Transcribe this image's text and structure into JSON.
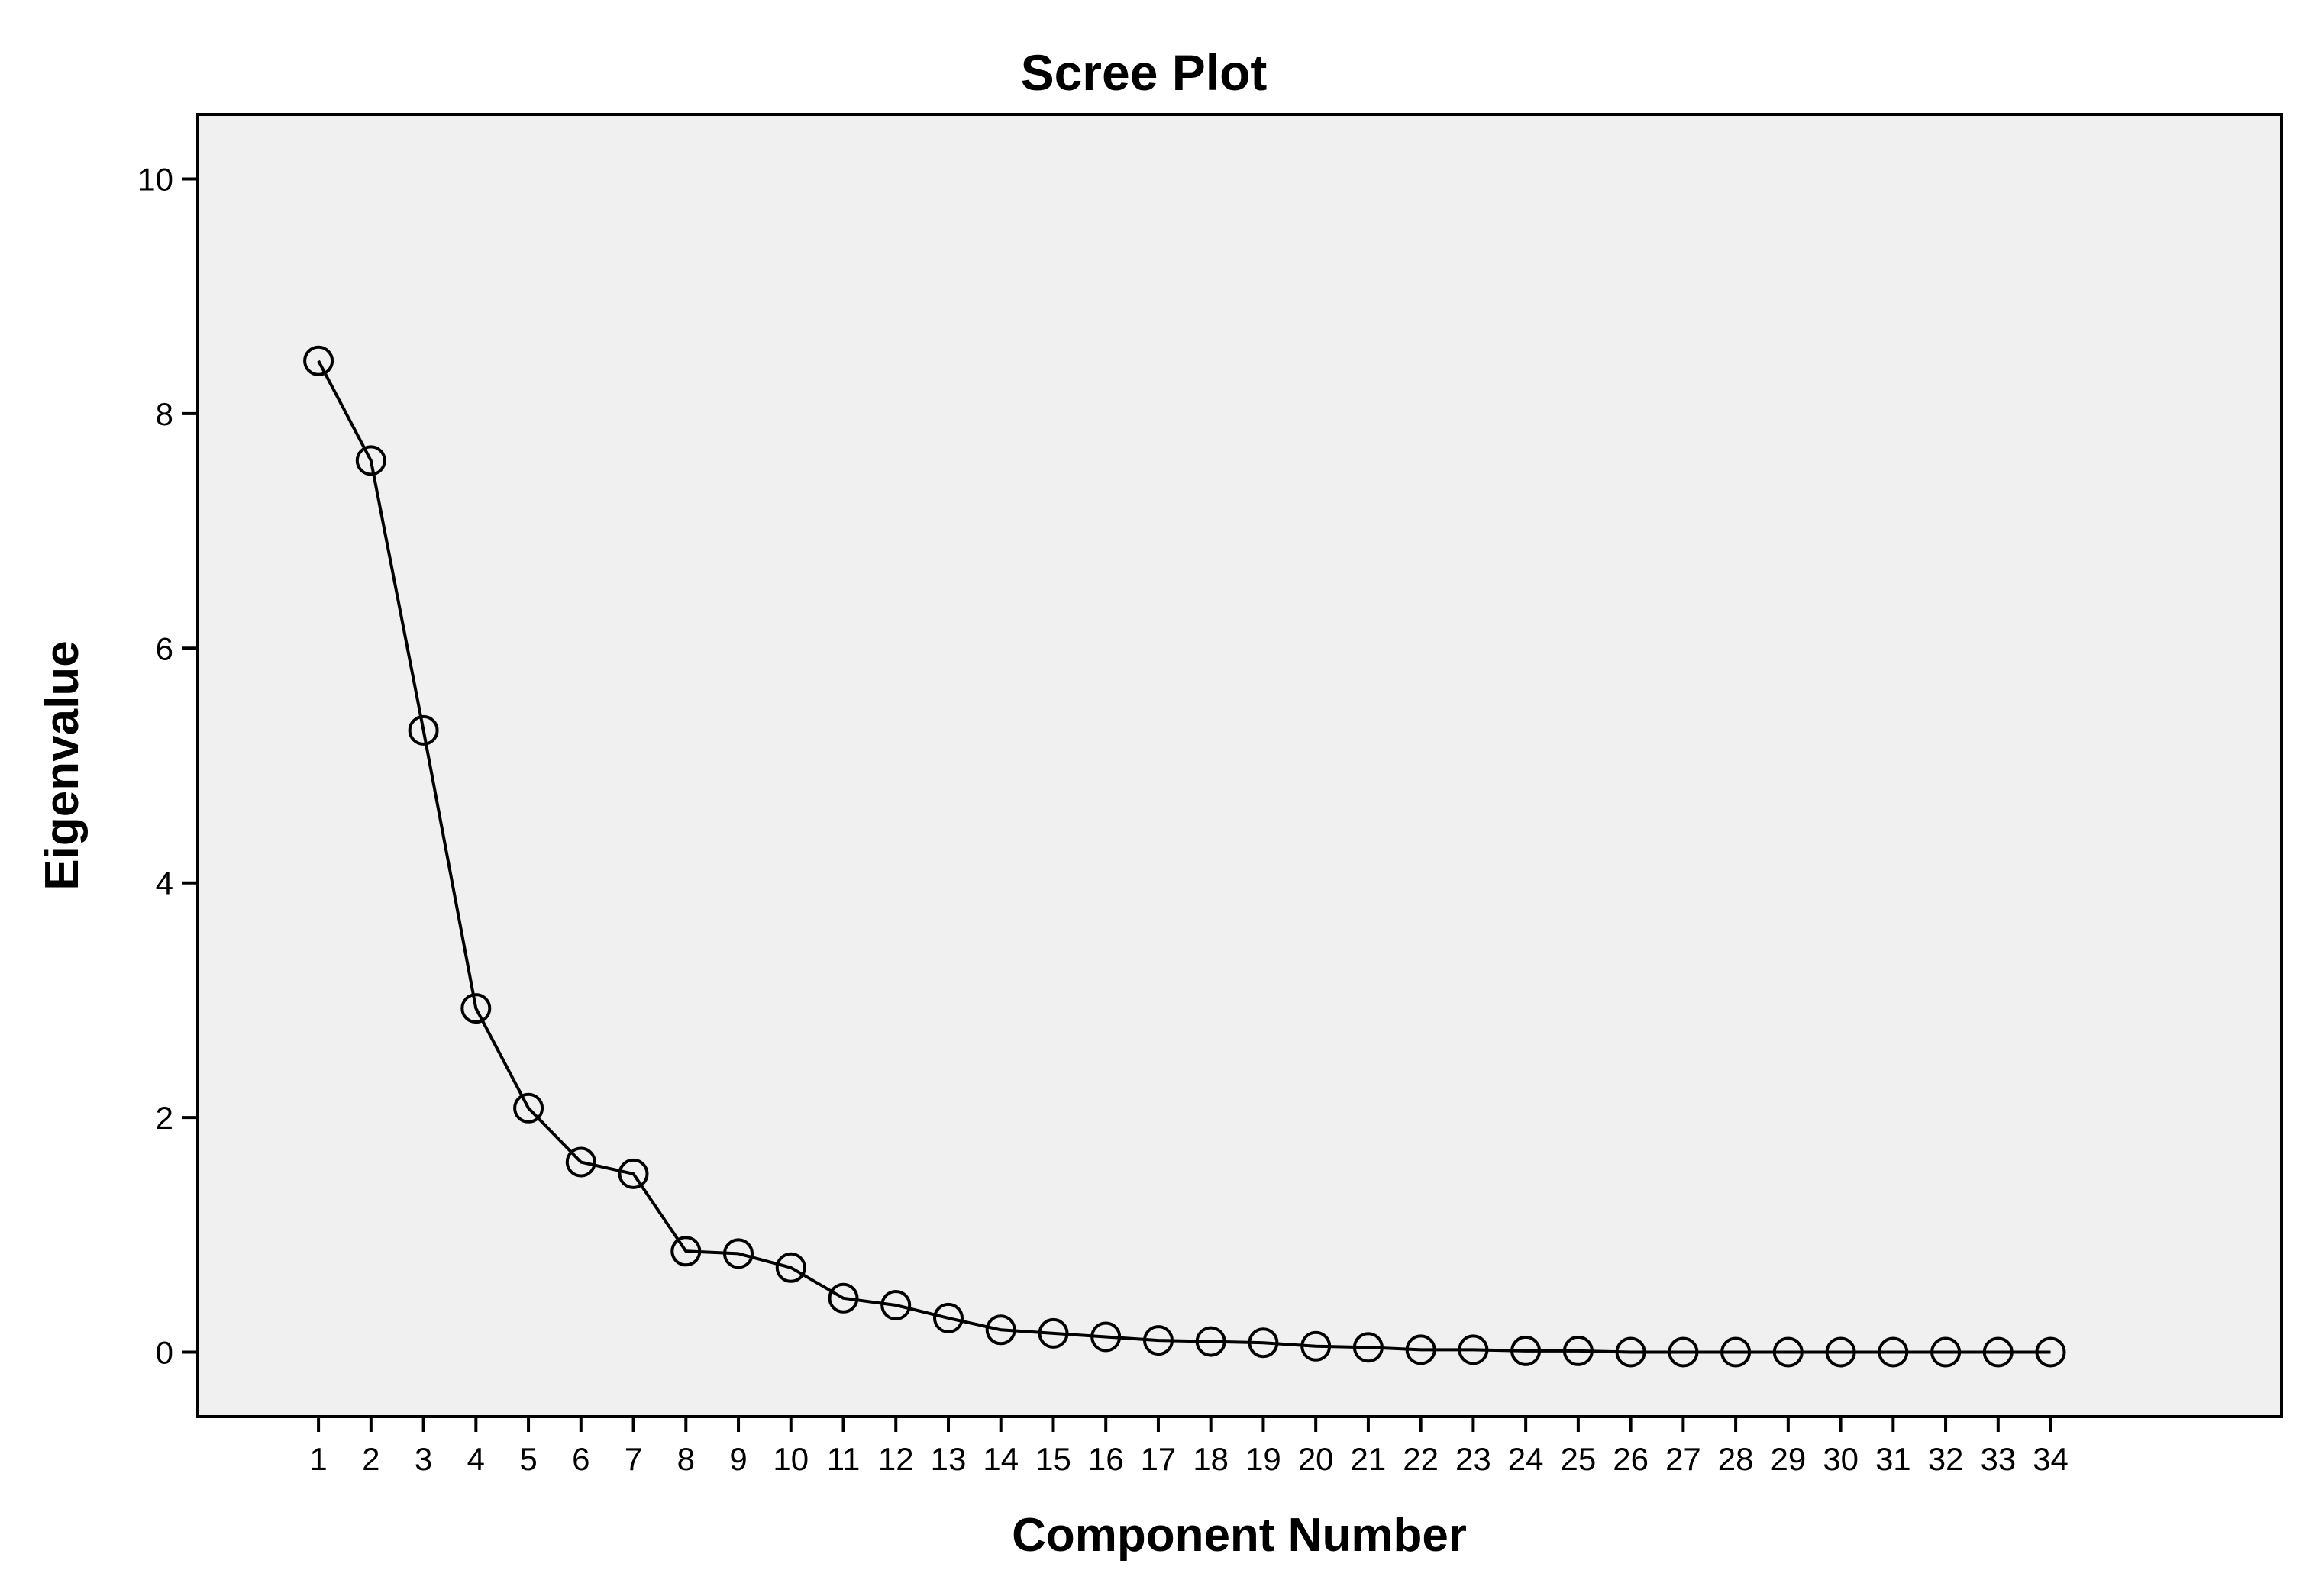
{
  "chart_data": {
    "type": "line",
    "title": "Scree Plot",
    "xlabel": "Component Number",
    "ylabel": "Eigenvalue",
    "x": [
      1,
      2,
      3,
      4,
      5,
      6,
      7,
      8,
      9,
      10,
      11,
      12,
      13,
      14,
      15,
      16,
      17,
      18,
      19,
      20,
      21,
      22,
      23,
      24,
      25,
      26,
      27,
      28,
      29,
      30,
      31,
      32,
      33,
      34
    ],
    "x_tick_labels": [
      "1",
      "2",
      "3",
      "4",
      "5",
      "6",
      "7",
      "8",
      "9",
      "10",
      "11",
      "12",
      "13",
      "14",
      "15",
      "16",
      "17",
      "18",
      "19",
      "20",
      "21",
      "22",
      "23",
      "24",
      "25",
      "26",
      "27",
      "28",
      "29",
      "30",
      "31",
      "32",
      "33",
      "34"
    ],
    "series": [
      {
        "values": [
          8.45,
          7.6,
          5.3,
          2.93,
          2.08,
          1.62,
          1.52,
          0.86,
          0.84,
          0.72,
          0.46,
          0.4,
          0.29,
          0.19,
          0.16,
          0.13,
          0.1,
          0.09,
          0.08,
          0.05,
          0.04,
          0.02,
          0.02,
          0.01,
          0.01,
          0.0,
          0.0,
          0.0,
          0.0,
          0.0,
          0.0,
          0.0,
          0.0,
          0.0
        ]
      }
    ],
    "xlim": [
      -1.3,
      38.4
    ],
    "ylim": [
      -0.55,
      10.55
    ],
    "y_ticks": [
      0,
      2,
      4,
      6,
      8,
      10
    ],
    "y_tick_labels": [
      "0",
      "2",
      "4",
      "6",
      "8",
      "10"
    ],
    "grid": false,
    "legend": "none",
    "marker": "open-circle",
    "colors": {
      "plot_background": "#f0f0f0",
      "line": "#000000",
      "marker_edge": "#000000"
    }
  }
}
